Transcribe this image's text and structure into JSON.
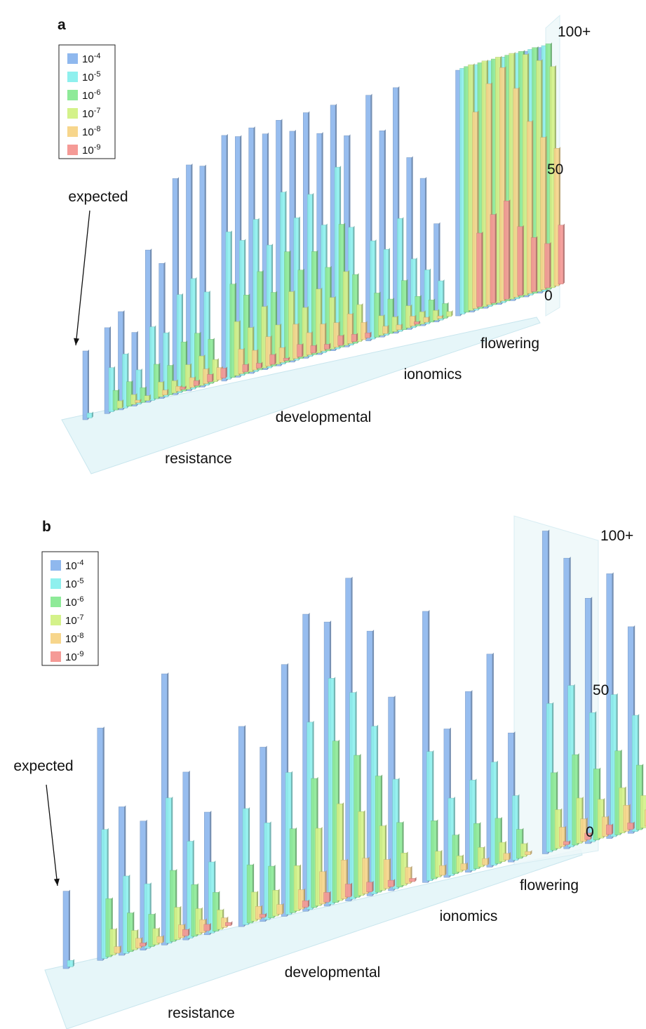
{
  "legend_colors": {
    "1e-4": "#8fb8ee",
    "1e-5": "#8ff0ee",
    "1e-6": "#8eea98",
    "1e-7": "#d4f28a",
    "1e-8": "#f7d68c",
    "1e-9": "#f59a96"
  },
  "chart_data": [
    {
      "type": "bar",
      "panel_label": "a",
      "legend": {
        "title": "",
        "entries": [
          {
            "base": "10",
            "exp": "-4",
            "key": "1e-4"
          },
          {
            "base": "10",
            "exp": "-5",
            "key": "1e-5"
          },
          {
            "base": "10",
            "exp": "-6",
            "key": "1e-6"
          },
          {
            "base": "10",
            "exp": "-7",
            "key": "1e-7"
          },
          {
            "base": "10",
            "exp": "-8",
            "key": "1e-8"
          },
          {
            "base": "10",
            "exp": "-9",
            "key": "1e-9"
          }
        ],
        "placement": "top-left"
      },
      "z_axis": {
        "ticks": [
          "0",
          "50",
          "100+"
        ],
        "range": [
          0,
          100
        ]
      },
      "annotation": "expected",
      "groups": [
        "resistance",
        "developmental",
        "ionomics",
        "flowering"
      ],
      "series_order": [
        "1e-4",
        "1e-5",
        "1e-6",
        "1e-7",
        "1e-8",
        "1e-9"
      ],
      "bars": [
        {
          "group": "expected",
          "values": [
            28,
            2
          ]
        },
        {
          "group": "resistance",
          "values": [
            35,
            18,
            8,
            3,
            0,
            0
          ]
        },
        {
          "group": "resistance",
          "values": [
            40,
            22,
            10,
            4,
            1,
            0
          ]
        },
        {
          "group": "resistance",
          "values": [
            30,
            14,
            6,
            2,
            0,
            0
          ]
        },
        {
          "group": "resistance",
          "values": [
            62,
            30,
            14,
            6,
            2,
            0
          ]
        },
        {
          "group": "resistance",
          "values": [
            55,
            26,
            12,
            5,
            2,
            1
          ]
        },
        {
          "group": "resistance",
          "values": [
            88,
            40,
            20,
            10,
            4,
            2
          ]
        },
        {
          "group": "resistance",
          "values": [
            92,
            45,
            22,
            12,
            6,
            3
          ]
        },
        {
          "group": "resistance",
          "values": [
            90,
            38,
            18,
            9,
            5,
            4
          ]
        },
        {
          "group": "developmental",
          "values": [
            100,
            60,
            38,
            22,
            10,
            3
          ]
        },
        {
          "group": "developmental",
          "values": [
            98,
            55,
            32,
            18,
            8,
            2
          ]
        },
        {
          "group": "developmental",
          "values": [
            100,
            62,
            40,
            25,
            12,
            4
          ]
        },
        {
          "group": "developmental",
          "values": [
            96,
            50,
            30,
            16,
            6,
            1
          ]
        },
        {
          "group": "developmental",
          "values": [
            100,
            70,
            45,
            28,
            14,
            5
          ]
        },
        {
          "group": "developmental",
          "values": [
            94,
            58,
            36,
            20,
            9,
            3
          ]
        },
        {
          "group": "developmental",
          "values": [
            100,
            66,
            42,
            26,
            11,
            2
          ]
        },
        {
          "group": "developmental",
          "values": [
            90,
            52,
            34,
            21,
            10,
            4
          ]
        },
        {
          "group": "developmental",
          "values": [
            100,
            74,
            50,
            30,
            12,
            3
          ]
        },
        {
          "group": "developmental",
          "values": [
            86,
            48,
            28,
            15,
            7,
            2
          ]
        },
        {
          "group": "ionomics",
          "values": [
            100,
            40,
            18,
            8,
            3,
            0
          ]
        },
        {
          "group": "ionomics",
          "values": [
            84,
            35,
            14,
            6,
            2,
            0
          ]
        },
        {
          "group": "ionomics",
          "values": [
            100,
            46,
            20,
            9,
            4,
            1
          ]
        },
        {
          "group": "ionomics",
          "values": [
            70,
            28,
            12,
            5,
            2,
            0
          ]
        },
        {
          "group": "ionomics",
          "values": [
            60,
            22,
            9,
            4,
            1,
            0
          ]
        },
        {
          "group": "ionomics",
          "values": [
            40,
            16,
            6,
            2,
            0,
            0
          ]
        },
        {
          "group": "flowering",
          "values": [
            100,
            100,
            100,
            100,
            80,
            30
          ]
        },
        {
          "group": "flowering",
          "values": [
            100,
            100,
            100,
            100,
            90,
            36
          ]
        },
        {
          "group": "flowering",
          "values": [
            100,
            100,
            100,
            100,
            95,
            40
          ]
        },
        {
          "group": "flowering",
          "values": [
            100,
            100,
            100,
            100,
            85,
            28
          ]
        },
        {
          "group": "flowering",
          "values": [
            100,
            100,
            100,
            98,
            70,
            22
          ]
        },
        {
          "group": "flowering",
          "values": [
            100,
            100,
            100,
            94,
            62,
            18
          ]
        },
        {
          "group": "flowering",
          "values": [
            100,
            100,
            100,
            90,
            56,
            24
          ]
        }
      ]
    },
    {
      "type": "bar",
      "panel_label": "b",
      "legend": {
        "title": "",
        "entries": [
          {
            "base": "10",
            "exp": "-4",
            "key": "1e-4"
          },
          {
            "base": "10",
            "exp": "-5",
            "key": "1e-5"
          },
          {
            "base": "10",
            "exp": "-6",
            "key": "1e-6"
          },
          {
            "base": "10",
            "exp": "-7",
            "key": "1e-7"
          },
          {
            "base": "10",
            "exp": "-8",
            "key": "1e-8"
          },
          {
            "base": "10",
            "exp": "-9",
            "key": "1e-9"
          }
        ],
        "placement": "top-left"
      },
      "z_axis": {
        "ticks": [
          "0",
          "50",
          "100+"
        ],
        "range": [
          0,
          100
        ]
      },
      "annotation": "expected",
      "groups": [
        "resistance",
        "developmental",
        "ionomics",
        "flowering"
      ],
      "series_order": [
        "1e-4",
        "1e-5",
        "1e-6",
        "1e-7",
        "1e-8",
        "1e-9"
      ],
      "bars": [
        {
          "group": "expected",
          "values": [
            24,
            2
          ]
        },
        {
          "group": "resistance",
          "values": [
            72,
            40,
            18,
            8,
            2,
            0
          ]
        },
        {
          "group": "resistance",
          "values": [
            46,
            24,
            12,
            6,
            3,
            1
          ]
        },
        {
          "group": "resistance",
          "values": [
            40,
            20,
            10,
            5,
            2,
            0
          ]
        },
        {
          "group": "resistance",
          "values": [
            84,
            45,
            22,
            10,
            4,
            2
          ]
        },
        {
          "group": "resistance",
          "values": [
            52,
            30,
            16,
            8,
            4,
            2
          ]
        },
        {
          "group": "resistance",
          "values": [
            38,
            22,
            12,
            6,
            3,
            1
          ]
        },
        {
          "group": "developmental",
          "values": [
            62,
            36,
            18,
            9,
            4,
            1
          ]
        },
        {
          "group": "developmental",
          "values": [
            54,
            30,
            16,
            8,
            3,
            0
          ]
        },
        {
          "group": "developmental",
          "values": [
            78,
            44,
            26,
            14,
            6,
            2
          ]
        },
        {
          "group": "developmental",
          "values": [
            92,
            58,
            40,
            24,
            10,
            3
          ]
        },
        {
          "group": "developmental",
          "values": [
            88,
            70,
            50,
            30,
            12,
            4
          ]
        },
        {
          "group": "developmental",
          "values": [
            100,
            64,
            44,
            26,
            11,
            3
          ]
        },
        {
          "group": "developmental",
          "values": [
            82,
            52,
            36,
            20,
            9,
            2
          ]
        },
        {
          "group": "developmental",
          "values": [
            60,
            34,
            20,
            10,
            5,
            1
          ]
        },
        {
          "group": "ionomics",
          "values": [
            84,
            40,
            18,
            8,
            3,
            0
          ]
        },
        {
          "group": "ionomics",
          "values": [
            46,
            24,
            12,
            5,
            2,
            0
          ]
        },
        {
          "group": "ionomics",
          "values": [
            56,
            28,
            14,
            6,
            2,
            0
          ]
        },
        {
          "group": "ionomics",
          "values": [
            66,
            32,
            14,
            6,
            2,
            0
          ]
        },
        {
          "group": "ionomics",
          "values": [
            40,
            20,
            9,
            4,
            1,
            0
          ]
        },
        {
          "group": "flowering",
          "values": [
            100,
            46,
            24,
            12,
            6,
            1
          ]
        },
        {
          "group": "flowering",
          "values": [
            90,
            50,
            28,
            14,
            7,
            2
          ]
        },
        {
          "group": "flowering",
          "values": [
            76,
            40,
            22,
            12,
            6,
            3
          ]
        },
        {
          "group": "flowering",
          "values": [
            82,
            44,
            26,
            14,
            8,
            2
          ]
        },
        {
          "group": "flowering",
          "values": [
            64,
            36,
            20,
            10,
            5,
            1
          ]
        }
      ]
    }
  ]
}
